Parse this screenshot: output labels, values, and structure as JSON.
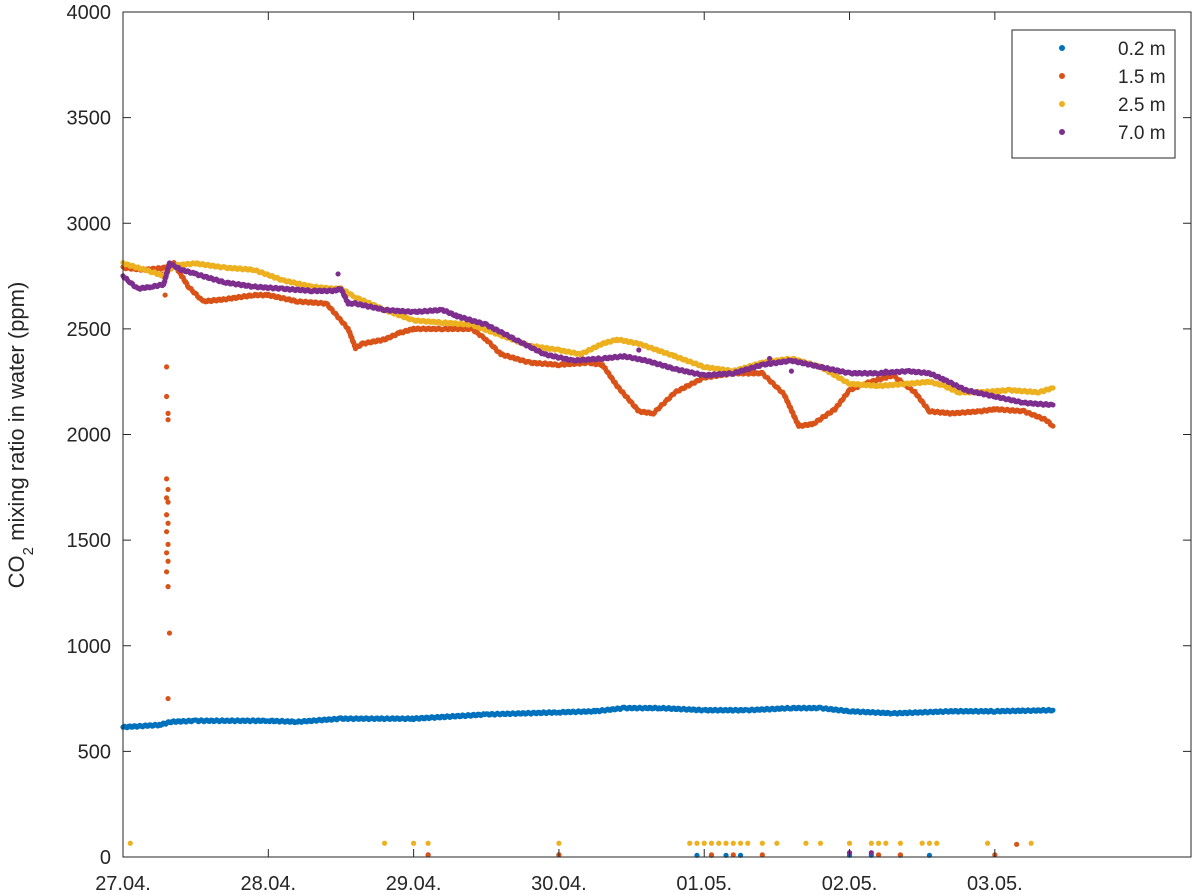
{
  "chart_data": {
    "type": "scatter",
    "title": "",
    "ylabel_main": "CO",
    "ylabel_sub": "2",
    "ylabel_rest": " mixing ratio in water (ppm)",
    "xlabel": "",
    "xlim": [
      0,
      7.35
    ],
    "ylim": [
      0,
      4000
    ],
    "xticks": [
      {
        "x": 0,
        "label": "27.04."
      },
      {
        "x": 1,
        "label": "28.04."
      },
      {
        "x": 2,
        "label": "29.04."
      },
      {
        "x": 3,
        "label": "30.04."
      },
      {
        "x": 4,
        "label": "01.05."
      },
      {
        "x": 5,
        "label": "02.05."
      },
      {
        "x": 6,
        "label": "03.05."
      }
    ],
    "yticks": [
      0,
      500,
      1000,
      1500,
      2000,
      2500,
      3000,
      3500,
      4000
    ],
    "grid": false,
    "legend_position": "top-right",
    "colors": {
      "axis": "#262626",
      "background": "#ffffff"
    },
    "series": [
      {
        "name": "0.2 m",
        "color": "#0072BD",
        "points": [
          [
            0,
            615
          ],
          [
            0.25,
            625
          ],
          [
            0.33,
            640
          ],
          [
            0.5,
            645
          ],
          [
            1.0,
            645
          ],
          [
            1.2,
            640
          ],
          [
            1.5,
            655
          ],
          [
            2.0,
            655
          ],
          [
            2.5,
            675
          ],
          [
            3.0,
            685
          ],
          [
            3.25,
            690
          ],
          [
            3.45,
            705
          ],
          [
            3.7,
            705
          ],
          [
            4.0,
            695
          ],
          [
            4.3,
            695
          ],
          [
            4.6,
            705
          ],
          [
            4.8,
            705
          ],
          [
            5.0,
            690
          ],
          [
            5.3,
            680
          ],
          [
            5.7,
            690
          ],
          [
            6.0,
            690
          ],
          [
            6.4,
            695
          ]
        ],
        "scatter": [
          [
            2.1,
            10
          ],
          [
            3.0,
            10
          ],
          [
            3.95,
            8
          ],
          [
            4.05,
            8
          ],
          [
            4.15,
            8
          ],
          [
            4.25,
            8
          ],
          [
            5.0,
            8
          ],
          [
            5.15,
            8
          ],
          [
            5.35,
            8
          ],
          [
            5.55,
            8
          ]
        ]
      },
      {
        "name": "1.5 m",
        "color": "#D95319",
        "points": [
          [
            0,
            2790
          ],
          [
            0.15,
            2780
          ],
          [
            0.3,
            2790
          ],
          [
            0.35,
            2810
          ],
          [
            0.45,
            2700
          ],
          [
            0.55,
            2630
          ],
          [
            0.7,
            2640
          ],
          [
            0.9,
            2660
          ],
          [
            1.0,
            2660
          ],
          [
            1.2,
            2630
          ],
          [
            1.4,
            2620
          ],
          [
            1.55,
            2500
          ],
          [
            1.6,
            2410
          ],
          [
            1.65,
            2430
          ],
          [
            1.8,
            2450
          ],
          [
            1.9,
            2480
          ],
          [
            2.0,
            2500
          ],
          [
            2.2,
            2500
          ],
          [
            2.4,
            2500
          ],
          [
            2.5,
            2450
          ],
          [
            2.6,
            2380
          ],
          [
            2.8,
            2340
          ],
          [
            3.0,
            2330
          ],
          [
            3.2,
            2340
          ],
          [
            3.3,
            2330
          ],
          [
            3.4,
            2230
          ],
          [
            3.55,
            2110
          ],
          [
            3.65,
            2100
          ],
          [
            3.8,
            2200
          ],
          [
            4.0,
            2270
          ],
          [
            4.2,
            2290
          ],
          [
            4.4,
            2290
          ],
          [
            4.55,
            2190
          ],
          [
            4.65,
            2040
          ],
          [
            4.75,
            2050
          ],
          [
            4.9,
            2120
          ],
          [
            5.0,
            2210
          ],
          [
            5.1,
            2240
          ],
          [
            5.3,
            2280
          ],
          [
            5.45,
            2200
          ],
          [
            5.55,
            2110
          ],
          [
            5.7,
            2100
          ],
          [
            5.9,
            2110
          ],
          [
            6.0,
            2120
          ],
          [
            6.2,
            2110
          ],
          [
            6.35,
            2070
          ],
          [
            6.4,
            2040
          ]
        ],
        "scatter": [
          [
            0.28,
            2760
          ],
          [
            0.29,
            2660
          ],
          [
            0.3,
            2320
          ],
          [
            0.3,
            2180
          ],
          [
            0.31,
            2100
          ],
          [
            0.31,
            2070
          ],
          [
            0.3,
            1790
          ],
          [
            0.31,
            1740
          ],
          [
            0.3,
            1700
          ],
          [
            0.31,
            1680
          ],
          [
            0.3,
            1620
          ],
          [
            0.31,
            1580
          ],
          [
            0.3,
            1540
          ],
          [
            0.31,
            1480
          ],
          [
            0.3,
            1440
          ],
          [
            0.31,
            1400
          ],
          [
            0.3,
            1350
          ],
          [
            0.31,
            1280
          ],
          [
            0.32,
            1060
          ],
          [
            0.31,
            750
          ],
          [
            2.1,
            10
          ],
          [
            3.0,
            10
          ],
          [
            4.05,
            10
          ],
          [
            4.2,
            10
          ],
          [
            4.4,
            10
          ],
          [
            5.2,
            10
          ],
          [
            5.35,
            10
          ],
          [
            6.0,
            10
          ],
          [
            6.15,
            60
          ]
        ]
      },
      {
        "name": "2.5 m",
        "color": "#EDB120",
        "points": [
          [
            0,
            2810
          ],
          [
            0.2,
            2770
          ],
          [
            0.28,
            2750
          ],
          [
            0.35,
            2800
          ],
          [
            0.5,
            2810
          ],
          [
            0.7,
            2790
          ],
          [
            0.9,
            2780
          ],
          [
            1.1,
            2730
          ],
          [
            1.3,
            2700
          ],
          [
            1.45,
            2690
          ],
          [
            1.5,
            2690
          ],
          [
            1.6,
            2650
          ],
          [
            1.8,
            2590
          ],
          [
            2.0,
            2540
          ],
          [
            2.2,
            2530
          ],
          [
            2.4,
            2520
          ],
          [
            2.6,
            2470
          ],
          [
            2.8,
            2420
          ],
          [
            3.0,
            2400
          ],
          [
            3.15,
            2380
          ],
          [
            3.3,
            2430
          ],
          [
            3.4,
            2450
          ],
          [
            3.55,
            2430
          ],
          [
            3.8,
            2370
          ],
          [
            4.0,
            2320
          ],
          [
            4.2,
            2300
          ],
          [
            4.4,
            2340
          ],
          [
            4.6,
            2360
          ],
          [
            4.8,
            2320
          ],
          [
            5.0,
            2240
          ],
          [
            5.2,
            2230
          ],
          [
            5.4,
            2240
          ],
          [
            5.55,
            2250
          ],
          [
            5.65,
            2230
          ],
          [
            5.75,
            2200
          ],
          [
            5.9,
            2200
          ],
          [
            6.1,
            2210
          ],
          [
            6.3,
            2200
          ],
          [
            6.4,
            2220
          ]
        ],
        "scatter": [
          [
            0.05,
            65
          ],
          [
            1.8,
            65
          ],
          [
            2.0,
            65
          ],
          [
            2.1,
            65
          ],
          [
            3.0,
            65
          ],
          [
            3.9,
            65
          ],
          [
            3.95,
            65
          ],
          [
            4.0,
            65
          ],
          [
            4.05,
            65
          ],
          [
            4.1,
            65
          ],
          [
            4.15,
            65
          ],
          [
            4.2,
            65
          ],
          [
            4.25,
            65
          ],
          [
            4.3,
            65
          ],
          [
            4.4,
            65
          ],
          [
            4.5,
            65
          ],
          [
            4.7,
            65
          ],
          [
            4.8,
            65
          ],
          [
            5.0,
            65
          ],
          [
            5.15,
            65
          ],
          [
            5.2,
            65
          ],
          [
            5.25,
            65
          ],
          [
            5.35,
            65
          ],
          [
            5.5,
            65
          ],
          [
            5.55,
            65
          ],
          [
            5.6,
            65
          ],
          [
            5.95,
            65
          ],
          [
            6.25,
            65
          ]
        ]
      },
      {
        "name": "7.0 m",
        "color": "#7E2F8E",
        "points": [
          [
            0,
            2750
          ],
          [
            0.05,
            2720
          ],
          [
            0.1,
            2690
          ],
          [
            0.2,
            2700
          ],
          [
            0.28,
            2710
          ],
          [
            0.32,
            2810
          ],
          [
            0.4,
            2780
          ],
          [
            0.5,
            2760
          ],
          [
            0.7,
            2720
          ],
          [
            0.9,
            2700
          ],
          [
            1.1,
            2690
          ],
          [
            1.3,
            2680
          ],
          [
            1.45,
            2680
          ],
          [
            1.5,
            2690
          ],
          [
            1.55,
            2620
          ],
          [
            1.6,
            2620
          ],
          [
            1.8,
            2590
          ],
          [
            2.0,
            2580
          ],
          [
            2.2,
            2590
          ],
          [
            2.3,
            2560
          ],
          [
            2.5,
            2520
          ],
          [
            2.7,
            2450
          ],
          [
            2.9,
            2380
          ],
          [
            3.1,
            2350
          ],
          [
            3.3,
            2360
          ],
          [
            3.45,
            2370
          ],
          [
            3.6,
            2350
          ],
          [
            3.8,
            2310
          ],
          [
            4.0,
            2280
          ],
          [
            4.2,
            2290
          ],
          [
            4.4,
            2330
          ],
          [
            4.6,
            2350
          ],
          [
            4.8,
            2320
          ],
          [
            5.0,
            2290
          ],
          [
            5.2,
            2290
          ],
          [
            5.4,
            2300
          ],
          [
            5.55,
            2290
          ],
          [
            5.65,
            2260
          ],
          [
            5.8,
            2210
          ],
          [
            6.0,
            2180
          ],
          [
            6.2,
            2150
          ],
          [
            6.4,
            2140
          ]
        ],
        "scatter": [
          [
            1.48,
            2760
          ],
          [
            3.55,
            2400
          ],
          [
            4.45,
            2360
          ],
          [
            4.6,
            2300
          ],
          [
            5.25,
            2300
          ],
          [
            5.0,
            20
          ],
          [
            5.15,
            20
          ]
        ]
      }
    ]
  }
}
